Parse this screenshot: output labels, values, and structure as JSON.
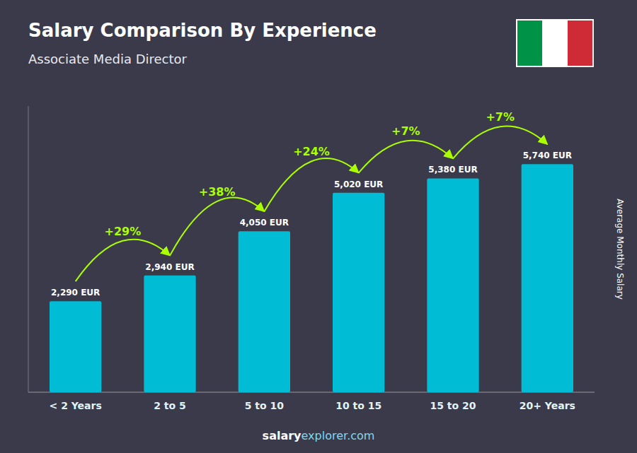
{
  "chart_data": {
    "type": "bar",
    "title": "Salary Comparison By Experience",
    "subtitle": "Associate Media Director",
    "ylabel": "Average Monthly Salary",
    "categories": [
      "< 2 Years",
      "2 to 5",
      "5 to 10",
      "10 to 15",
      "15 to 20",
      "20+ Years"
    ],
    "values": [
      2290,
      2940,
      4050,
      5020,
      5380,
      5740
    ],
    "value_labels": [
      "2,290 EUR",
      "2,940 EUR",
      "4,050 EUR",
      "5,020 EUR",
      "5,380 EUR",
      "5,740 EUR"
    ],
    "data_labels": true,
    "color": "#00bcd4",
    "ylim": [
      0,
      7200
    ],
    "tick_labels": "x",
    "grid": false,
    "annotations": [
      {
        "label": "+29%",
        "color": "#aaff00"
      },
      {
        "label": "+38%",
        "color": "#aaff00"
      },
      {
        "label": "+24%",
        "color": "#aaff00"
      },
      {
        "label": "+7%",
        "color": "#aaff00"
      },
      {
        "label": "+7%",
        "color": "#aaff00"
      }
    ],
    "watermark": [
      "salary",
      "explorer.com"
    ],
    "flag_colors": [
      "#009246",
      "#ffffff",
      "#ce2b37"
    ]
  }
}
